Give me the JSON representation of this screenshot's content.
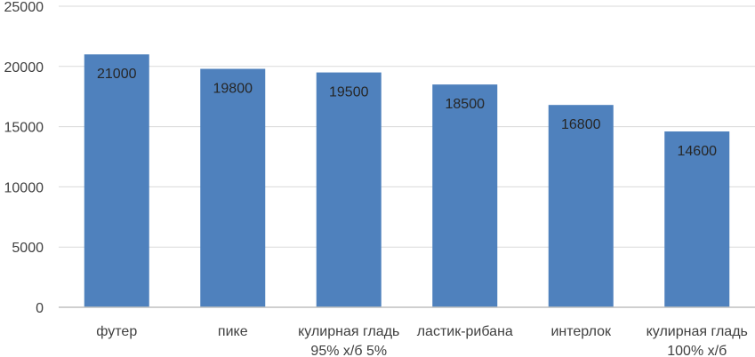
{
  "chart_data": {
    "type": "bar",
    "categories": [
      [
        "футер"
      ],
      [
        "пике"
      ],
      [
        "кулирная гладь",
        "95% х/б 5%"
      ],
      [
        "ластик-рибана"
      ],
      [
        "интерлок"
      ],
      [
        "кулирная гладь",
        "100% х/б"
      ]
    ],
    "values": [
      21000,
      19800,
      19500,
      18500,
      16800,
      14600
    ],
    "data_labels": [
      "21000",
      "19800",
      "19500",
      "18500",
      "16800",
      "14600"
    ],
    "ylim": [
      0,
      25000
    ],
    "yticks": [
      0,
      5000,
      10000,
      15000,
      20000,
      25000
    ],
    "ytick_labels": [
      "0",
      "5000",
      "10000",
      "15000",
      "20000",
      "25000"
    ],
    "title": "",
    "xlabel": "",
    "ylabel": "",
    "grid": true,
    "legend": "none",
    "colors": {
      "bar": "#4f81bd",
      "grid": "#d9d9d9",
      "axis": "#bfbfbf",
      "text": "#404040"
    }
  }
}
